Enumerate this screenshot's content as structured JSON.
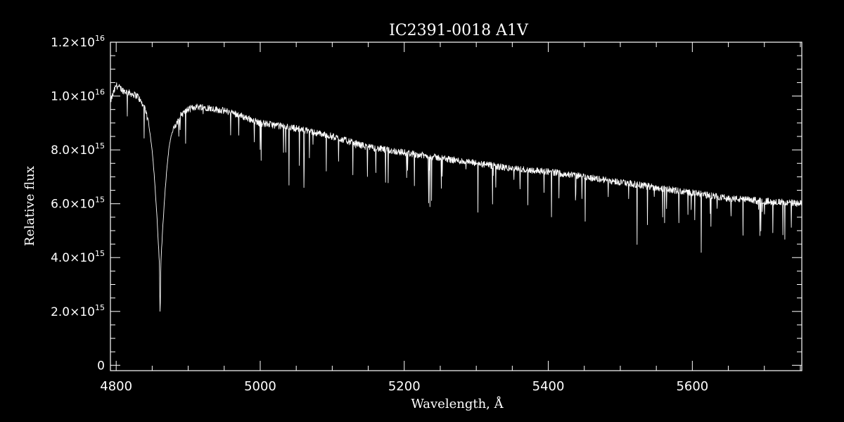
{
  "chart_data": {
    "type": "line",
    "title": "IC2391-0018   A1V",
    "xlabel": "Wavelength, Å",
    "ylabel": "Relative flux",
    "xlim": [
      4792,
      5752
    ],
    "ylim": [
      -0.02,
      1.2
    ],
    "y_scale_label": "×10^16 (tick labels printed in scientific notation)",
    "x_ticks": [
      {
        "value": 4800,
        "label": "4800"
      },
      {
        "value": 5000,
        "label": "5000"
      },
      {
        "value": 5200,
        "label": "5200"
      },
      {
        "value": 5400,
        "label": "5400"
      },
      {
        "value": 5600,
        "label": "5600"
      }
    ],
    "y_ticks": [
      {
        "value": 0.0,
        "mantissa": "0",
        "exponent": ""
      },
      {
        "value": 0.2,
        "mantissa": "2.0×10",
        "exponent": "15"
      },
      {
        "value": 0.4,
        "mantissa": "4.0×10",
        "exponent": "15"
      },
      {
        "value": 0.6,
        "mantissa": "6.0×10",
        "exponent": "15"
      },
      {
        "value": 0.8,
        "mantissa": "8.0×10",
        "exponent": "15"
      },
      {
        "value": 1.0,
        "mantissa": "1.0×10",
        "exponent": "16"
      },
      {
        "value": 1.2,
        "mantissa": "1.2×10",
        "exponent": "16"
      }
    ],
    "series": [
      {
        "color": "#ffffff",
        "x": [
          4792,
          4800,
          4810,
          4820,
          4830,
          4840,
          4845,
          4850,
          4853,
          4856,
          4858,
          4860,
          4861,
          4862,
          4864,
          4866,
          4868,
          4870,
          4873,
          4876,
          4880,
          4885,
          4890,
          4900,
          4910,
          4920,
          4940,
          4960,
          4980,
          5000,
          5050,
          5100,
          5150,
          5200,
          5250,
          5300,
          5350,
          5400,
          5450,
          5500,
          5550,
          5600,
          5650,
          5700,
          5752
        ],
        "y": [
          0.98,
          1.04,
          1.02,
          1.01,
          1.0,
          0.95,
          0.9,
          0.8,
          0.7,
          0.58,
          0.48,
          0.38,
          0.17,
          0.38,
          0.48,
          0.57,
          0.65,
          0.72,
          0.8,
          0.85,
          0.88,
          0.9,
          0.93,
          0.95,
          0.96,
          0.96,
          0.95,
          0.94,
          0.92,
          0.9,
          0.88,
          0.85,
          0.81,
          0.79,
          0.77,
          0.75,
          0.73,
          0.72,
          0.7,
          0.68,
          0.66,
          0.64,
          0.62,
          0.61,
          0.6
        ]
      }
    ]
  }
}
